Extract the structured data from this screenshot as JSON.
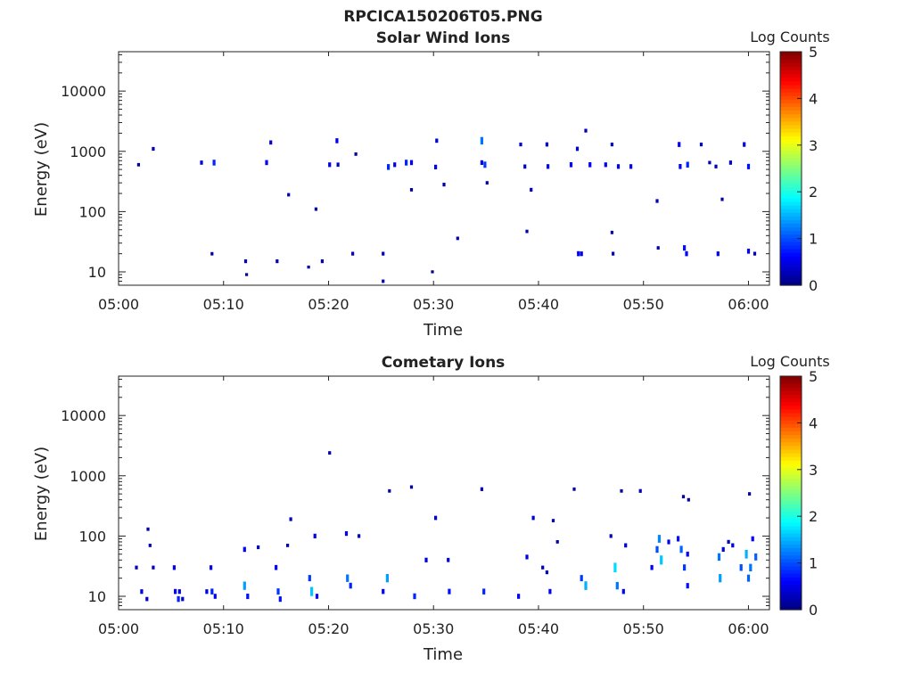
{
  "figure_title": "RPCICA150206T05.PNG",
  "colors": {
    "colormap": [
      "#00007f",
      "#0000ff",
      "#007fff",
      "#00ffff",
      "#7fff7f",
      "#ffff00",
      "#ff7f00",
      "#ff0000",
      "#7f0000"
    ],
    "axis": "#222222"
  },
  "chart_data": [
    {
      "type": "heatmap",
      "title": "Solar Wind Ions",
      "xlabel": "Time",
      "ylabel": "Energy (eV)",
      "xlim": [
        "05:00",
        "06:02"
      ],
      "ylim": [
        6,
        45000
      ],
      "yscale": "log",
      "x_ticks": [
        "05:00",
        "05:10",
        "05:20",
        "05:30",
        "05:40",
        "05:50",
        "06:00"
      ],
      "y_ticks": [
        10,
        100,
        1000,
        10000
      ],
      "y_tick_labels": [
        "10",
        "100",
        "1000",
        "10000"
      ],
      "colorbar": {
        "label": "Log Counts",
        "range": [
          0,
          5
        ],
        "ticks": [
          "0",
          "1",
          "2",
          "3",
          "4",
          "5"
        ]
      },
      "points": [
        [
          1.9,
          600,
          0.2
        ],
        [
          3.3,
          1100,
          0.3
        ],
        [
          7.9,
          650,
          0.4
        ],
        [
          9.1,
          650,
          0.8
        ],
        [
          8.9,
          20,
          0.2
        ],
        [
          12.1,
          15,
          0.3
        ],
        [
          12.2,
          9,
          0.1
        ],
        [
          14.1,
          650,
          0.6
        ],
        [
          14.5,
          1400,
          0.4
        ],
        [
          15.1,
          15,
          0.3
        ],
        [
          16.2,
          190,
          0.2
        ],
        [
          18.1,
          12,
          0.1
        ],
        [
          18.8,
          110,
          0.2
        ],
        [
          19.4,
          15,
          0.3
        ],
        [
          20.1,
          600,
          0.5
        ],
        [
          20.8,
          1500,
          0.6
        ],
        [
          20.9,
          600,
          0.4
        ],
        [
          22.3,
          20,
          0.3
        ],
        [
          22.6,
          900,
          0.2
        ],
        [
          25.2,
          20,
          0.3
        ],
        [
          25.2,
          7,
          0.2
        ],
        [
          25.7,
          550,
          0.8
        ],
        [
          26.3,
          600,
          0.5
        ],
        [
          27.4,
          650,
          0.8
        ],
        [
          27.9,
          230,
          0.2
        ],
        [
          27.9,
          650,
          0.6
        ],
        [
          29.9,
          10,
          0.1
        ],
        [
          30.2,
          550,
          0.5
        ],
        [
          30.3,
          1500,
          0.4
        ],
        [
          31.0,
          280,
          0.3
        ],
        [
          32.3,
          36,
          0.2
        ],
        [
          34.6,
          1500,
          1.2
        ],
        [
          34.9,
          600,
          0.9
        ],
        [
          34.6,
          650,
          0.5
        ],
        [
          35.1,
          300,
          0.2
        ],
        [
          38.3,
          1300,
          0.3
        ],
        [
          38.7,
          560,
          0.4
        ],
        [
          38.9,
          47,
          0.2
        ],
        [
          39.3,
          230,
          0.3
        ],
        [
          40.8,
          1300,
          0.4
        ],
        [
          40.9,
          560,
          0.5
        ],
        [
          43.1,
          600,
          0.6
        ],
        [
          43.7,
          1100,
          0.4
        ],
        [
          43.8,
          20,
          0.6
        ],
        [
          44.1,
          20,
          0.5
        ],
        [
          44.5,
          2200,
          0.3
        ],
        [
          44.9,
          600,
          0.6
        ],
        [
          46.4,
          600,
          0.5
        ],
        [
          47.0,
          1300,
          0.3
        ],
        [
          47.0,
          45,
          0.2
        ],
        [
          47.1,
          20,
          0.3
        ],
        [
          47.6,
          560,
          0.5
        ],
        [
          48.8,
          560,
          0.5
        ],
        [
          51.3,
          150,
          0.3
        ],
        [
          51.4,
          25,
          0.2
        ],
        [
          53.4,
          1300,
          0.6
        ],
        [
          53.5,
          560,
          0.6
        ],
        [
          53.9,
          25,
          0.7
        ],
        [
          54.1,
          20,
          0.6
        ],
        [
          54.2,
          600,
          0.8
        ],
        [
          55.5,
          1300,
          0.3
        ],
        [
          56.3,
          650,
          0.2
        ],
        [
          56.9,
          560,
          0.3
        ],
        [
          57.1,
          20,
          0.5
        ],
        [
          57.5,
          160,
          0.2
        ],
        [
          58.3,
          650,
          0.4
        ],
        [
          59.6,
          1300,
          0.5
        ],
        [
          60.0,
          560,
          0.7
        ],
        [
          60.0,
          22,
          0.6
        ],
        [
          60.6,
          20,
          0.3
        ]
      ]
    },
    {
      "type": "heatmap",
      "title": "Cometary Ions",
      "xlabel": "Time",
      "ylabel": "Energy (eV)",
      "xlim": [
        "05:00",
        "06:02"
      ],
      "ylim": [
        6,
        45000
      ],
      "yscale": "log",
      "x_ticks": [
        "05:00",
        "05:10",
        "05:20",
        "05:30",
        "05:40",
        "05:50",
        "06:00"
      ],
      "y_ticks": [
        10,
        100,
        1000,
        10000
      ],
      "y_tick_labels": [
        "10",
        "100",
        "1000",
        "10000"
      ],
      "colorbar": {
        "label": "Log Counts",
        "range": [
          0,
          5
        ],
        "ticks": [
          "0",
          "1",
          "2",
          "3",
          "4",
          "5"
        ]
      },
      "points": [
        [
          1.7,
          30,
          0.3
        ],
        [
          2.2,
          12,
          0.5
        ],
        [
          2.7,
          9,
          0.4
        ],
        [
          2.8,
          130,
          0.2
        ],
        [
          3.0,
          70,
          0.2
        ],
        [
          3.3,
          30,
          0.3
        ],
        [
          5.3,
          30,
          0.5
        ],
        [
          5.4,
          12,
          0.6
        ],
        [
          5.7,
          9,
          0.8
        ],
        [
          5.8,
          12,
          0.5
        ],
        [
          6.1,
          9,
          0.4
        ],
        [
          8.4,
          12,
          0.5
        ],
        [
          8.8,
          30,
          0.5
        ],
        [
          8.9,
          12,
          0.8
        ],
        [
          9.2,
          10,
          0.6
        ],
        [
          12.0,
          60,
          0.6
        ],
        [
          12.0,
          15,
          1.4
        ],
        [
          12.3,
          10,
          0.7
        ],
        [
          13.3,
          65,
          0.3
        ],
        [
          15.0,
          30,
          0.6
        ],
        [
          15.2,
          12,
          0.9
        ],
        [
          15.4,
          9,
          0.7
        ],
        [
          16.1,
          70,
          0.2
        ],
        [
          16.4,
          190,
          0.3
        ],
        [
          18.2,
          20,
          0.9
        ],
        [
          18.4,
          12,
          1.6
        ],
        [
          18.7,
          100,
          0.5
        ],
        [
          18.9,
          10,
          0.6
        ],
        [
          20.1,
          2400,
          0.2
        ],
        [
          21.7,
          110,
          0.5
        ],
        [
          21.8,
          20,
          1.2
        ],
        [
          22.1,
          15,
          0.8
        ],
        [
          22.9,
          100,
          0.3
        ],
        [
          25.2,
          12,
          0.6
        ],
        [
          25.6,
          20,
          1.4
        ],
        [
          25.8,
          560,
          0.2
        ],
        [
          27.9,
          650,
          0.2
        ],
        [
          28.2,
          10,
          0.8
        ],
        [
          29.3,
          40,
          0.5
        ],
        [
          30.2,
          200,
          0.4
        ],
        [
          31.4,
          40,
          0.4
        ],
        [
          31.5,
          12,
          0.7
        ],
        [
          34.6,
          600,
          0.3
        ],
        [
          34.8,
          12,
          0.8
        ],
        [
          38.1,
          10,
          0.6
        ],
        [
          38.9,
          45,
          0.5
        ],
        [
          39.5,
          200,
          0.4
        ],
        [
          40.4,
          30,
          0.3
        ],
        [
          40.8,
          25,
          0.3
        ],
        [
          41.1,
          12,
          0.6
        ],
        [
          41.4,
          180,
          0.2
        ],
        [
          41.8,
          80,
          0.2
        ],
        [
          43.4,
          600,
          0.2
        ],
        [
          44.1,
          20,
          0.9
        ],
        [
          44.5,
          15,
          1.5
        ],
        [
          46.9,
          100,
          0.3
        ],
        [
          47.3,
          30,
          1.7
        ],
        [
          47.5,
          15,
          1.2
        ],
        [
          48.1,
          12,
          0.6
        ],
        [
          47.9,
          560,
          0.2
        ],
        [
          48.3,
          70,
          0.4
        ],
        [
          49.7,
          560,
          0.3
        ],
        [
          50.8,
          30,
          0.6
        ],
        [
          51.3,
          60,
          1.0
        ],
        [
          51.5,
          90,
          1.3
        ],
        [
          51.7,
          40,
          1.6
        ],
        [
          52.4,
          80,
          0.5
        ],
        [
          53.3,
          90,
          0.7
        ],
        [
          53.6,
          60,
          1.1
        ],
        [
          53.9,
          30,
          0.9
        ],
        [
          54.2,
          50,
          0.6
        ],
        [
          54.2,
          15,
          0.7
        ],
        [
          54.3,
          400,
          0.2
        ],
        [
          53.8,
          450,
          0.2
        ],
        [
          57.2,
          45,
          1.2
        ],
        [
          57.3,
          20,
          1.4
        ],
        [
          57.6,
          60,
          0.5
        ],
        [
          58.1,
          80,
          0.3
        ],
        [
          58.5,
          70,
          0.4
        ],
        [
          59.3,
          30,
          1.0
        ],
        [
          59.8,
          50,
          1.5
        ],
        [
          60.0,
          20,
          1.1
        ],
        [
          60.2,
          30,
          1.2
        ],
        [
          60.4,
          90,
          0.6
        ],
        [
          60.7,
          45,
          1.1
        ],
        [
          60.1,
          500,
          0.2
        ]
      ]
    }
  ]
}
